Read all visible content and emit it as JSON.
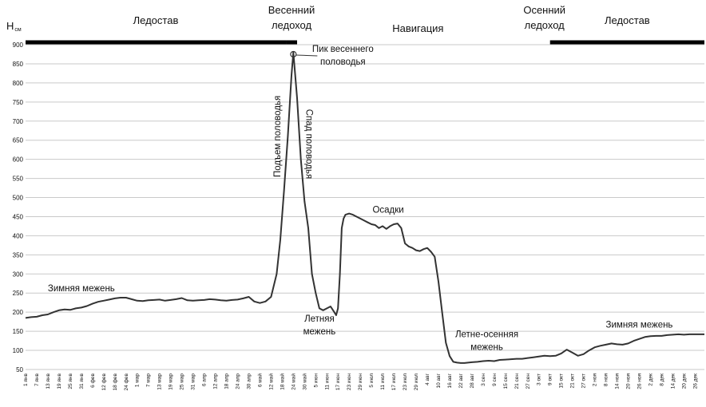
{
  "chart_data": {
    "type": "line",
    "ylabel": "H",
    "ylabel_unit": "см",
    "ylim": [
      50,
      900
    ],
    "yticks": [
      50,
      100,
      150,
      200,
      250,
      300,
      350,
      400,
      450,
      500,
      550,
      600,
      650,
      700,
      750,
      800,
      850,
      900
    ],
    "grid": "horizontal",
    "xticks": [
      "1 янв",
      "7 янв",
      "13 янв",
      "19 янв",
      "25 янв",
      "31 янв",
      "6 фев",
      "12 фев",
      "18 фев",
      "24 фев",
      "1 мар",
      "7 мар",
      "13 мар",
      "19 мар",
      "25 мар",
      "31 мар",
      "6 апр",
      "12 апр",
      "18 апр",
      "24 апр",
      "30 апр",
      "6 май",
      "12 май",
      "18 май",
      "24 май",
      "30 май",
      "5 июн",
      "11 июн",
      "17 июн",
      "23 июн",
      "29 июн",
      "5 июл",
      "11 июл",
      "17 июл",
      "23 июл",
      "29 июл",
      "4 авг",
      "10 авг",
      "16 авг",
      "22 авг",
      "28 авг",
      "3 сен",
      "9 сен",
      "15 сен",
      "21 сен",
      "27 сен",
      "3 окт",
      "9 окт",
      "15 окт",
      "21 окт",
      "27 окт",
      "2 ноя",
      "8 ноя",
      "14 ноя",
      "20 ноя",
      "26 ноя",
      "2 дек",
      "8 дек",
      "14 дек",
      "20 дек",
      "26 дек"
    ],
    "seasons": [
      {
        "label": "Ледостав",
        "start_day": 0,
        "end_day": 140,
        "bar": true
      },
      {
        "label_lines": [
          "Весенний",
          "ледоход"
        ],
        "start_day": 140,
        "end_day": 146,
        "bar": true
      },
      {
        "label": "Навигация",
        "start_day": 146,
        "end_day": 276,
        "bar": false
      },
      {
        "label_lines": [
          "Осенний",
          "ледоход"
        ],
        "start_day": 276,
        "end_day": 282,
        "bar": false
      },
      {
        "label": "Ледостав",
        "start_day": 282,
        "end_day": 365,
        "bar": true
      }
    ],
    "annotations": [
      {
        "lines": [
          "Пик весеннего",
          "половодья"
        ],
        "day": 144,
        "value": 875,
        "marker": true
      },
      {
        "text": "Подъем половодья",
        "day": 137,
        "value": 660,
        "vertical": true
      },
      {
        "text": "Спад половодья",
        "day": 151,
        "value": 640,
        "vertical": true
      },
      {
        "text": "Осадки",
        "day": 195,
        "value": 460
      },
      {
        "text": "Зимняя межень",
        "day": 30,
        "value": 255
      },
      {
        "lines": [
          "Летняя",
          "межень"
        ],
        "day": 158,
        "value": 175
      },
      {
        "lines": [
          "Летне-осенняя",
          "межень"
        ],
        "day": 248,
        "value": 135
      },
      {
        "text": "Зимняя межень",
        "day": 330,
        "value": 160
      }
    ],
    "series": [
      {
        "x": [
          0,
          3,
          6,
          9,
          12,
          15,
          18,
          21,
          24,
          27,
          30,
          33,
          36,
          39,
          42,
          45,
          48,
          51,
          54,
          57,
          60,
          63,
          66,
          69,
          72,
          75,
          78,
          81,
          84,
          87,
          90,
          93,
          96,
          99,
          102,
          105,
          108,
          111,
          114,
          117,
          120,
          123,
          126,
          129,
          132,
          135,
          137,
          139,
          141,
          143,
          144,
          146,
          148,
          150,
          152,
          154,
          156,
          158,
          160,
          162,
          164,
          166,
          167,
          168,
          169,
          170,
          171,
          172,
          174,
          176,
          178,
          180,
          182,
          184,
          186,
          188,
          190,
          192,
          194,
          196,
          198,
          200,
          202,
          204,
          206,
          208,
          210,
          212,
          214,
          216,
          218,
          220,
          222,
          224,
          226,
          228,
          230,
          232,
          234,
          236,
          238,
          240,
          243,
          246,
          249,
          252,
          255,
          258,
          261,
          264,
          267,
          270,
          273,
          276,
          279,
          282,
          285,
          288,
          291,
          294,
          297,
          300,
          303,
          306,
          309,
          312,
          315,
          318,
          321,
          324,
          327,
          330,
          333,
          336,
          339,
          342,
          345,
          348,
          351,
          354,
          357,
          360,
          363,
          365
        ],
        "values": [
          185,
          187,
          188,
          192,
          194,
          200,
          205,
          207,
          206,
          210,
          212,
          216,
          222,
          227,
          230,
          233,
          236,
          238,
          238,
          234,
          230,
          229,
          231,
          232,
          233,
          230,
          232,
          234,
          237,
          231,
          230,
          231,
          232,
          234,
          233,
          231,
          230,
          232,
          233,
          236,
          240,
          228,
          224,
          228,
          240,
          300,
          390,
          520,
          660,
          820,
          880,
          760,
          600,
          490,
          420,
          300,
          250,
          210,
          205,
          210,
          215,
          200,
          192,
          210,
          300,
          420,
          445,
          455,
          458,
          455,
          450,
          445,
          440,
          435,
          430,
          428,
          420,
          425,
          418,
          425,
          430,
          432,
          420,
          380,
          372,
          368,
          362,
          360,
          365,
          368,
          358,
          345,
          280,
          200,
          120,
          85,
          70,
          68,
          67,
          67,
          68,
          69,
          70,
          72,
          73,
          72,
          75,
          76,
          77,
          78,
          78,
          80,
          82,
          84,
          86,
          85,
          86,
          92,
          102,
          94,
          86,
          90,
          100,
          108,
          112,
          115,
          118,
          116,
          115,
          118,
          125,
          130,
          135,
          137,
          138,
          138,
          140,
          141,
          142,
          141,
          142,
          142,
          142,
          142
        ]
      }
    ]
  }
}
